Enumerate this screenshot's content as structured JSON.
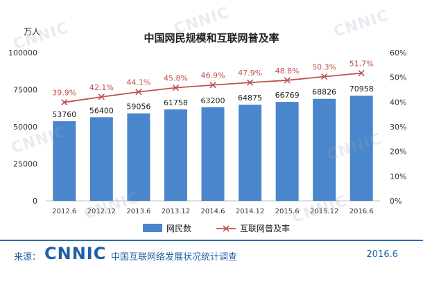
{
  "colors": {
    "bar": "#4a86cc",
    "line": "#c0504d",
    "brand": "#1f5fa8"
  },
  "chart_data": {
    "type": "bar",
    "title": "中国网民规模和互联网普及率",
    "y_unit": "万人",
    "categories": [
      "2012.6",
      "2012.12",
      "2013.6",
      "2013.12",
      "2014.6",
      "2014.12",
      "2015.6",
      "2015.12",
      "2016.6"
    ],
    "series": [
      {
        "name": "网民数",
        "type": "bar",
        "axis": "left",
        "values": [
          53760,
          56400,
          59056,
          61758,
          63200,
          64875,
          66769,
          68826,
          70958
        ],
        "labels": [
          "53760",
          "56400",
          "59056",
          "61758",
          "63200",
          "64875",
          "66769",
          "68826",
          "70958"
        ]
      },
      {
        "name": "互联网普及率",
        "type": "line",
        "axis": "right",
        "values": [
          39.9,
          42.1,
          44.1,
          45.8,
          46.9,
          47.9,
          48.8,
          50.3,
          51.7
        ],
        "labels": [
          "39.9%",
          "42.1%",
          "44.1%",
          "45.8%",
          "46.9%",
          "47.9%",
          "48.8%",
          "50.3%",
          "51.7%"
        ]
      }
    ],
    "ylim_left": [
      0,
      100000
    ],
    "yticks_left": [
      "0",
      "25000",
      "50000",
      "75000",
      "100000"
    ],
    "ylim_right": [
      0,
      60
    ],
    "yticks_right": [
      "0%",
      "10%",
      "20%",
      "30%",
      "40%",
      "50%",
      "60%"
    ],
    "legend_position": "bottom"
  },
  "footer": {
    "source_label": "来源：",
    "logo_text": "CNNIC",
    "organization": "中国互联网络发展状况统计调查",
    "date": "2016.6"
  },
  "watermark": "CNNIC"
}
